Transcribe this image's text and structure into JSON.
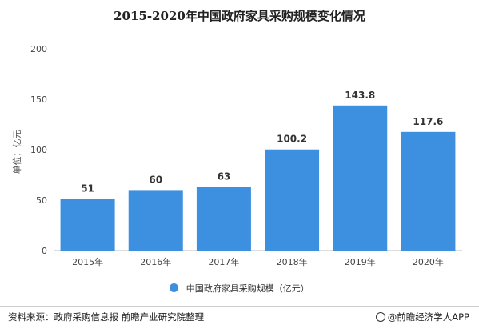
{
  "title": "2015-2020年中国政府家具采购规模变化情况",
  "chart_data": {
    "type": "bar",
    "categories": [
      "2015年",
      "2016年",
      "2017年",
      "2018年",
      "2019年",
      "2020年"
    ],
    "series": [
      {
        "name": "中国政府家具采购规模（亿元）",
        "values": [
          51,
          60,
          63,
          100.2,
          143.8,
          117.6
        ]
      }
    ],
    "value_labels": [
      "51",
      "60",
      "63",
      "100.2",
      "143.8",
      "117.6"
    ],
    "ylabel": "单位：亿元",
    "ylim": [
      0,
      200
    ],
    "yticks": [
      0,
      50,
      100,
      150,
      200
    ],
    "grid": false,
    "legend_position": "bottom",
    "bar_color": "#3d8fe0"
  },
  "footer": {
    "source": "资料来源：政府采购信息报 前瞻产业研究院整理",
    "brand": "@前瞻经济学人APP"
  }
}
